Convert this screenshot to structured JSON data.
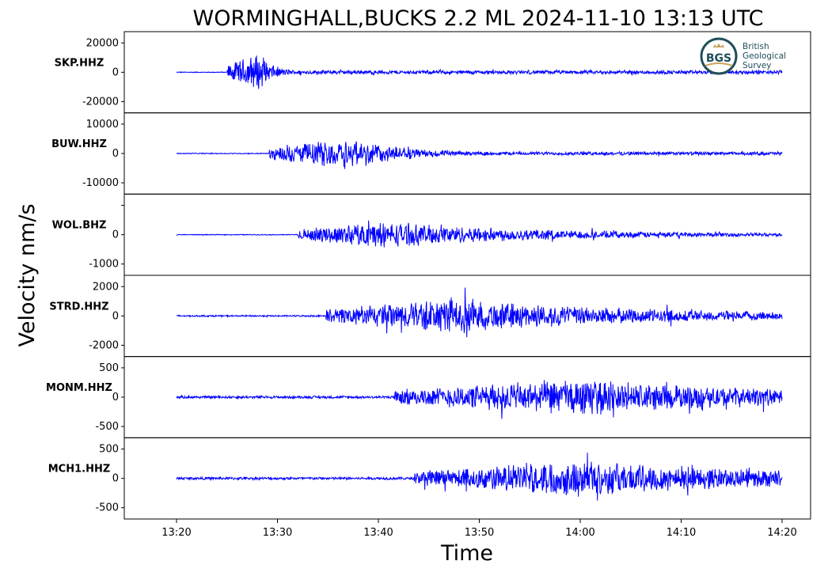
{
  "chart_data": {
    "type": "line",
    "title": "WORMINGHALL,BUCKS 2.2 ML   2024-11-10 13:13 UTC",
    "xlabel": "Time",
    "ylabel": "Velocity nm/s",
    "x_range": [
      "13:20",
      "14:20"
    ],
    "x_ticks": [
      "13:20",
      "13:30",
      "13:40",
      "13:50",
      "14:00",
      "14:10",
      "14:20"
    ],
    "line_color": "#0000ff",
    "panels": [
      {
        "station": "SKP.HHZ",
        "yticks": [
          "20000",
          "0",
          "-20000"
        ],
        "yrange": [
          -20000,
          20000
        ],
        "onset_min": 5.0,
        "peak_min": 8.0,
        "peak_amp": 25000,
        "noise": 300,
        "decay": 0.65,
        "spikes": 3
      },
      {
        "station": "BUW.HHZ",
        "yticks": [
          "10000",
          "0",
          "-10000"
        ],
        "yrange": [
          -10000,
          10000
        ],
        "onset_min": 9.2,
        "peak_min": 17.5,
        "peak_amp": 10500,
        "noise": 180,
        "decay": 0.2,
        "spikes": 2
      },
      {
        "station": "WOL.BHZ",
        "yticks": [
          "",
          "0",
          "-1000"
        ],
        "yrange": [
          -1000,
          1000
        ],
        "onset_min": 12.0,
        "peak_min": 20.0,
        "peak_amp": 850,
        "noise": 15,
        "decay": 0.06,
        "spikes": 2
      },
      {
        "station": "STRD.HHZ",
        "yticks": [
          "2000",
          "0",
          "-2000"
        ],
        "yrange": [
          -2000,
          2000
        ],
        "onset_min": 14.8,
        "peak_min": 27.0,
        "peak_amp": 2200,
        "noise": 60,
        "decay": 0.05,
        "spikes": 2
      },
      {
        "station": "MONM.HHZ",
        "yticks": [
          "500",
          "0",
          "-500"
        ],
        "yrange": [
          -500,
          500
        ],
        "onset_min": 21.5,
        "peak_min": 40.0,
        "peak_amp": 560,
        "noise": 25,
        "decay": 0.045,
        "spikes": 2
      },
      {
        "station": "MCH1.HHZ",
        "yticks": [
          "500",
          "0",
          "-500"
        ],
        "yrange": [
          -500,
          500
        ],
        "onset_min": 23.5,
        "peak_min": 40.0,
        "peak_amp": 560,
        "noise": 25,
        "decay": 0.045,
        "spikes": 2
      }
    ]
  },
  "logo": {
    "letters": "BGS",
    "name_lines": [
      "British",
      "Geological",
      "Survey"
    ],
    "color": "#1f4e5a",
    "accent": "#c8a25a"
  }
}
